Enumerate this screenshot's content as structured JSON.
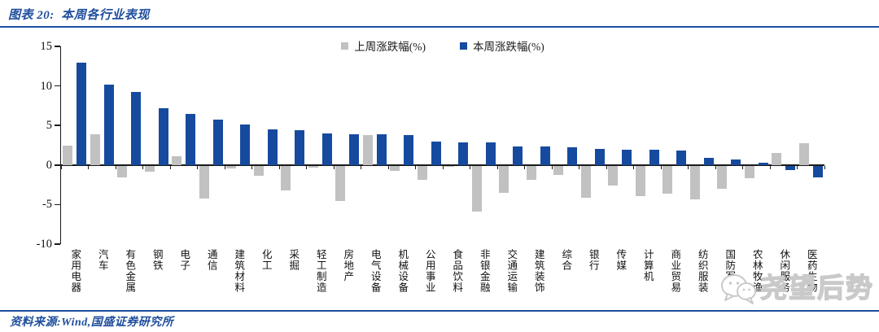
{
  "title": "图表 20:  本周各行业表现",
  "source": "资料来源:Wind,国盛证券研究所",
  "watermark": {
    "text": "尧望后势",
    "icon": "wechat-chat-icon"
  },
  "colors": {
    "accent_blue": "#1F4E9C",
    "bar_blue": "#164A9E",
    "bar_gray": "#C1C1C1",
    "axis_ink": "#1a1a1a",
    "watermark_gray": "#C9C9C9"
  },
  "chart_data": {
    "type": "bar",
    "title": "本周各行业表现",
    "categories": [
      "家用电器",
      "汽车",
      "有色金属",
      "钢铁",
      "电子",
      "通信",
      "建筑材料",
      "化工",
      "采掘",
      "轻工制造",
      "房地产",
      "电气设备",
      "机械设备",
      "公用事业",
      "食品饮料",
      "非银金融",
      "交通运输",
      "建筑装饰",
      "综合",
      "银行",
      "传媒",
      "计算机",
      "商业贸易",
      "纺织服装",
      "国防军工",
      "农林牧渔",
      "休闲服务",
      "医药生物"
    ],
    "series": [
      {
        "name": "上周涨跌幅(%)",
        "color": "#C1C1C1",
        "values": [
          2.4,
          3.9,
          -1.5,
          -0.7,
          1.1,
          -4.1,
          -0.3,
          -1.3,
          -3.1,
          -0.2,
          -4.4,
          3.8,
          -0.6,
          -1.8,
          -0.1,
          -5.8,
          -3.4,
          -1.8,
          -1.2,
          -4.0,
          -2.5,
          -3.8,
          -3.5,
          -4.2,
          -2.9,
          -1.6,
          1.5,
          2.8
        ]
      },
      {
        "name": "本周涨跌幅(%)",
        "color": "#164A9E",
        "values": [
          12.9,
          10.2,
          9.2,
          7.2,
          6.5,
          5.7,
          5.1,
          4.5,
          4.4,
          4.0,
          3.9,
          3.9,
          3.8,
          3.0,
          2.9,
          2.9,
          2.3,
          2.3,
          2.2,
          2.0,
          1.9,
          1.9,
          1.8,
          0.9,
          0.7,
          0.3,
          -0.5,
          -1.5
        ]
      }
    ],
    "ylim": [
      -10,
      15
    ],
    "yticks": [
      15,
      10,
      5,
      0,
      -5,
      -10
    ],
    "xlabel": "",
    "ylabel": "",
    "grid": false,
    "legend_position": "top-center"
  }
}
